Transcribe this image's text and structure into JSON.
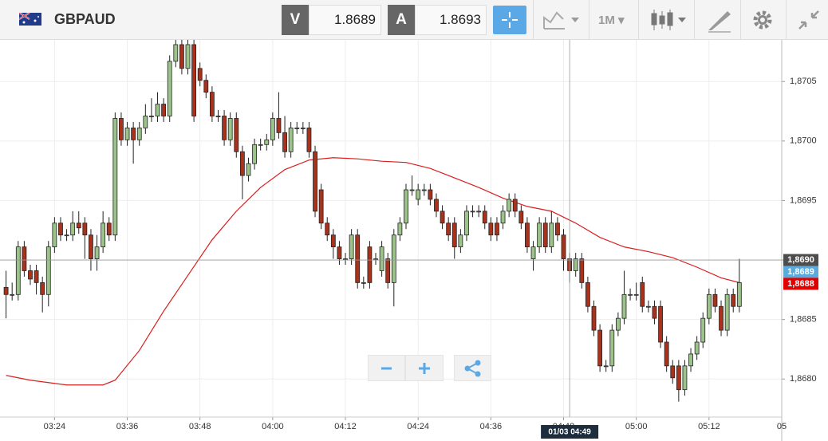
{
  "toolbar": {
    "symbol": "GBPAUD",
    "bid_label": "V",
    "bid": 1.8689,
    "ask_label": "A",
    "ask": 1.8693,
    "interval": "1M"
  },
  "chart_data": {
    "type": "candlestick",
    "x": [
      "03:16",
      "03:17",
      "03:18",
      "03:19",
      "03:20",
      "03:21",
      "03:22",
      "03:23",
      "03:24",
      "03:25",
      "03:26",
      "03:27",
      "03:28",
      "03:29",
      "03:30",
      "03:31",
      "03:32",
      "03:33",
      "03:34",
      "03:35",
      "03:36",
      "03:37",
      "03:38",
      "03:39",
      "03:40",
      "03:41",
      "03:42",
      "03:43",
      "03:44",
      "03:45",
      "03:46",
      "03:47",
      "03:48",
      "03:49",
      "03:50",
      "03:51",
      "03:52",
      "03:53",
      "03:54",
      "03:55",
      "03:56",
      "03:57",
      "03:58",
      "03:59",
      "04:00",
      "04:01",
      "04:02",
      "04:03",
      "04:04",
      "04:05",
      "04:06",
      "04:07",
      "04:08",
      "04:09",
      "04:10",
      "04:11",
      "04:12",
      "04:13",
      "04:14",
      "04:15",
      "04:16",
      "04:17",
      "04:18",
      "04:19",
      "04:20",
      "04:21",
      "04:22",
      "04:23",
      "04:24",
      "04:25",
      "04:26",
      "04:27",
      "04:28",
      "04:29",
      "04:30",
      "04:31",
      "04:32",
      "04:33",
      "04:34",
      "04:35",
      "04:36",
      "04:37",
      "04:38",
      "04:39",
      "04:40",
      "04:41",
      "04:42",
      "04:43",
      "04:44",
      "04:45",
      "04:46",
      "04:47",
      "04:48",
      "04:49",
      "04:50",
      "04:51",
      "04:52",
      "04:53",
      "04:54",
      "04:55",
      "04:56",
      "04:57",
      "04:58",
      "04:59",
      "05:00",
      "05:01",
      "05:02",
      "05:03",
      "05:04",
      "05:05",
      "05:06",
      "05:07",
      "05:08",
      "05:09",
      "05:10",
      "05:11",
      "05:12",
      "05:13",
      "05:14",
      "05:15",
      "05:16",
      "05:17"
    ],
    "open": [
      1.86877,
      1.86871,
      1.86871,
      1.86911,
      1.86891,
      1.86891,
      1.86881,
      1.86871,
      1.86911,
      1.86931,
      1.86921,
      1.86921,
      1.86931,
      1.86931,
      1.86921,
      1.86901,
      1.86911,
      1.86931,
      1.86921,
      1.87019,
      1.87001,
      1.87011,
      1.87001,
      1.87011,
      1.87021,
      1.87021,
      1.87031,
      1.87021,
      1.87067,
      1.87081,
      1.87061,
      1.87081,
      1.87061,
      1.87051,
      1.87041,
      1.87021,
      1.87021,
      1.87001,
      1.87019,
      1.86991,
      1.86971,
      1.86981,
      1.86997,
      1.86997,
      1.87001,
      1.87019,
      1.87007,
      1.86991,
      1.87011,
      1.87011,
      1.87011,
      1.86991,
      1.86959,
      1.86931,
      1.86921,
      1.86911,
      1.86901,
      1.86901,
      1.86921,
      1.86881,
      1.86911,
      1.86901,
      1.86891,
      1.86901,
      1.86881,
      1.86921,
      1.86931,
      1.86959,
      1.86951,
      1.86959,
      1.86959,
      1.86951,
      1.86941,
      1.86931,
      1.86931,
      1.86911,
      1.86921,
      1.86941,
      1.86941,
      1.86941,
      1.86931,
      1.86931,
      1.86931,
      1.86941,
      1.86951,
      1.86941,
      1.86931,
      1.86901,
      1.86911,
      1.86931,
      1.86911,
      1.86931,
      1.86921,
      1.86901,
      1.86891,
      1.86901,
      1.86881,
      1.86861,
      1.86841,
      1.86811,
      1.86811,
      1.86841,
      1.86851,
      1.86871,
      1.86871,
      1.86881,
      1.86861,
      1.86861,
      1.86861,
      1.86831,
      1.86811,
      1.86811,
      1.86791,
      1.86811,
      1.86821,
      1.86831,
      1.86851,
      1.86871,
      1.86861,
      1.86841,
      1.86871,
      1.86861
    ],
    "high": [
      1.86891,
      1.86881,
      1.86916,
      1.86916,
      1.86896,
      1.86896,
      1.86886,
      1.86916,
      1.86936,
      1.86936,
      1.86926,
      1.86941,
      1.86941,
      1.86936,
      1.86926,
      1.86921,
      1.86941,
      1.86936,
      1.87024,
      1.87024,
      1.87016,
      1.87016,
      1.87016,
      1.87031,
      1.87036,
      1.87041,
      1.87036,
      1.87072,
      1.87091,
      1.87086,
      1.87086,
      1.87086,
      1.87066,
      1.87056,
      1.87046,
      1.87026,
      1.87026,
      1.87024,
      1.87024,
      1.86996,
      1.86986,
      1.87002,
      1.87002,
      1.87006,
      1.87024,
      1.87041,
      1.87021,
      1.87016,
      1.87016,
      1.87016,
      1.87016,
      1.86996,
      1.86964,
      1.86936,
      1.86926,
      1.86916,
      1.86906,
      1.86926,
      1.86926,
      1.86886,
      1.86916,
      1.86906,
      1.86916,
      1.86906,
      1.86926,
      1.86936,
      1.86964,
      1.86971,
      1.86964,
      1.86964,
      1.86964,
      1.86956,
      1.86946,
      1.86936,
      1.86936,
      1.86926,
      1.86946,
      1.86946,
      1.86946,
      1.86946,
      1.86936,
      1.86936,
      1.86946,
      1.86956,
      1.86956,
      1.86946,
      1.86936,
      1.86916,
      1.86936,
      1.86936,
      1.86941,
      1.86936,
      1.86926,
      1.86906,
      1.86906,
      1.86906,
      1.86886,
      1.86866,
      1.86846,
      1.86816,
      1.86846,
      1.86856,
      1.86891,
      1.86876,
      1.86881,
      1.86886,
      1.86866,
      1.86866,
      1.86866,
      1.86836,
      1.86816,
      1.86816,
      1.86816,
      1.86826,
      1.86836,
      1.86856,
      1.86876,
      1.86876,
      1.86866,
      1.86876,
      1.86876,
      1.86901
    ],
    "low": [
      1.86851,
      1.86866,
      1.86866,
      1.86886,
      1.86879,
      1.86871,
      1.86856,
      1.86861,
      1.86906,
      1.86916,
      1.86916,
      1.86916,
      1.86922,
      1.86901,
      1.86891,
      1.86891,
      1.86906,
      1.86916,
      1.86916,
      1.86996,
      1.86996,
      1.86981,
      1.86996,
      1.87006,
      1.87016,
      1.87016,
      1.87016,
      1.87016,
      1.87062,
      1.87056,
      1.87056,
      1.87016,
      1.87046,
      1.87036,
      1.87016,
      1.87016,
      1.86996,
      1.86996,
      1.86986,
      1.86951,
      1.86966,
      1.86976,
      1.86992,
      1.86992,
      1.86996,
      1.87002,
      1.86986,
      1.86986,
      1.87006,
      1.87006,
      1.86986,
      1.86936,
      1.86926,
      1.86916,
      1.86901,
      1.86896,
      1.86896,
      1.86896,
      1.86876,
      1.86876,
      1.86876,
      1.86896,
      1.86886,
      1.86876,
      1.86861,
      1.86916,
      1.86926,
      1.86954,
      1.86946,
      1.86954,
      1.86946,
      1.86936,
      1.86926,
      1.86916,
      1.86901,
      1.86906,
      1.86916,
      1.86936,
      1.86936,
      1.86926,
      1.86916,
      1.86916,
      1.86926,
      1.86936,
      1.86936,
      1.86926,
      1.86906,
      1.86891,
      1.86906,
      1.86906,
      1.86906,
      1.86916,
      1.86891,
      1.86881,
      1.86886,
      1.86876,
      1.86856,
      1.86836,
      1.86806,
      1.86806,
      1.86806,
      1.86836,
      1.86846,
      1.86866,
      1.86866,
      1.86856,
      1.86856,
      1.86846,
      1.86826,
      1.86806,
      1.86796,
      1.86781,
      1.86786,
      1.86806,
      1.86816,
      1.86826,
      1.86846,
      1.86856,
      1.86836,
      1.86836,
      1.86856,
      1.86856
    ],
    "close": [
      1.86871,
      1.86871,
      1.86911,
      1.86891,
      1.86884,
      1.86881,
      1.86871,
      1.86911,
      1.86931,
      1.86921,
      1.86921,
      1.86931,
      1.86927,
      1.86921,
      1.86901,
      1.86911,
      1.86931,
      1.86921,
      1.87019,
      1.87001,
      1.87011,
      1.87001,
      1.87011,
      1.87021,
      1.87021,
      1.87031,
      1.87021,
      1.87067,
      1.87081,
      1.87061,
      1.87081,
      1.87021,
      1.87051,
      1.87041,
      1.87021,
      1.87021,
      1.87001,
      1.87019,
      1.86991,
      1.86971,
      1.86981,
      1.86997,
      1.86997,
      1.87001,
      1.87019,
      1.87007,
      1.86991,
      1.87011,
      1.87011,
      1.87011,
      1.86991,
      1.86941,
      1.86931,
      1.86921,
      1.86911,
      1.86901,
      1.86901,
      1.86921,
      1.86881,
      1.86881,
      1.86881,
      1.86901,
      1.86911,
      1.86881,
      1.86921,
      1.86931,
      1.86959,
      1.86959,
      1.86959,
      1.86959,
      1.86951,
      1.86941,
      1.86931,
      1.86921,
      1.86911,
      1.86921,
      1.86941,
      1.86941,
      1.86941,
      1.86931,
      1.86921,
      1.86921,
      1.86941,
      1.86951,
      1.86941,
      1.86931,
      1.86911,
      1.86911,
      1.86931,
      1.86911,
      1.86931,
      1.86921,
      1.86901,
      1.86891,
      1.86901,
      1.86881,
      1.86861,
      1.86841,
      1.86811,
      1.86811,
      1.86841,
      1.86851,
      1.86871,
      1.86871,
      1.86871,
      1.86861,
      1.86861,
      1.86851,
      1.86831,
      1.86811,
      1.86801,
      1.86791,
      1.86811,
      1.86821,
      1.86831,
      1.86851,
      1.86871,
      1.86861,
      1.86841,
      1.86871,
      1.86861,
      1.86881
    ],
    "up_color": "#9cc38a",
    "down_color": "#a8321c",
    "moving_average": {
      "color": "#d91e1e",
      "x": [
        "03:16",
        "03:20",
        "03:26",
        "03:32",
        "03:34",
        "03:38",
        "03:42",
        "03:46",
        "03:50",
        "03:54",
        "03:58",
        "04:02",
        "04:06",
        "04:10",
        "04:14",
        "04:18",
        "04:22",
        "04:26",
        "04:30",
        "04:34",
        "04:38",
        "04:42",
        "04:46",
        "04:50",
        "04:54",
        "04:58",
        "05:02",
        "05:06",
        "05:10",
        "05:14",
        "05:17"
      ],
      "values": [
        1.86803,
        1.86799,
        1.86795,
        1.86795,
        1.86799,
        1.86824,
        1.86857,
        1.86887,
        1.86917,
        1.86941,
        1.86961,
        1.86976,
        1.86984,
        1.86986,
        1.86985,
        1.86983,
        1.86982,
        1.86977,
        1.86969,
        1.86961,
        1.86952,
        1.86945,
        1.86941,
        1.86931,
        1.86919,
        1.86911,
        1.86907,
        1.86902,
        1.86894,
        1.86885,
        1.86881
      ]
    },
    "xlim": [
      "03:15",
      "05:24"
    ],
    "xticks": [
      "03:24",
      "03:36",
      "03:48",
      "04:00",
      "04:12",
      "04:24",
      "04:36",
      "04:48",
      "05:00",
      "05:12",
      {
        "value": "05:24",
        "label": "05"
      }
    ],
    "ylim": [
      1.86768,
      1.87085
    ],
    "yticks": [
      {
        "value": 1.868,
        "label": "1,8680"
      },
      {
        "value": 1.8685,
        "label": "1,8685"
      },
      {
        "value": 1.869,
        "label": "1,8690"
      },
      {
        "value": 1.8695,
        "label": "1,8695"
      },
      {
        "value": 1.87,
        "label": "1,8700"
      },
      {
        "value": 1.8705,
        "label": "1,8705"
      }
    ],
    "grid": true,
    "crosshair": {
      "x": "04:49",
      "y": 1.869,
      "label": "01/03 04:49"
    },
    "price_labels": [
      {
        "value": 1.869,
        "label": "1,8690",
        "color": "#4d4d4d"
      },
      {
        "value": 1.8689,
        "label": "1,8689",
        "color": "#5aabdc"
      },
      {
        "value": 1.8688,
        "label": "1,8688",
        "color": "#e00000"
      }
    ]
  }
}
